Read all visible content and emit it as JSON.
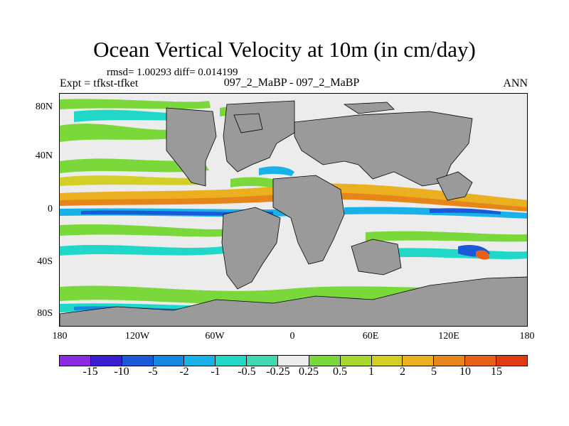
{
  "title": "Ocean Vertical Velocity at 10m (in cm/day)",
  "stats": "rmsd= 1.00293 diff= 0.014199",
  "expt": "Expt = tfkst-tfket",
  "case": "097_2_MaBP - 097_2_MaBP",
  "season": "ANN",
  "lat_labels": [
    "80N",
    "40N",
    "0",
    "40S",
    "80S"
  ],
  "lon_labels": [
    "180",
    "120W",
    "60W",
    "0",
    "60E",
    "120E",
    "180"
  ],
  "colorbar": {
    "labels": [
      "-15",
      "-10",
      "-5",
      "-2",
      "-1",
      "-0.5",
      "-0.25",
      "0.25",
      "0.5",
      "1",
      "2",
      "5",
      "10",
      "15"
    ],
    "colors": [
      "#8a2be2",
      "#3a1fd0",
      "#1a5ad8",
      "#1487e0",
      "#19b2e8",
      "#20d8c8",
      "#3fd8b0",
      "#ececec",
      "#7ad83a",
      "#a8d830",
      "#d4cf26",
      "#ebb020",
      "#e6861a",
      "#e85f18",
      "#e03c14"
    ]
  },
  "colors": {
    "land": "#9a9a9a",
    "background": "#ececec"
  }
}
